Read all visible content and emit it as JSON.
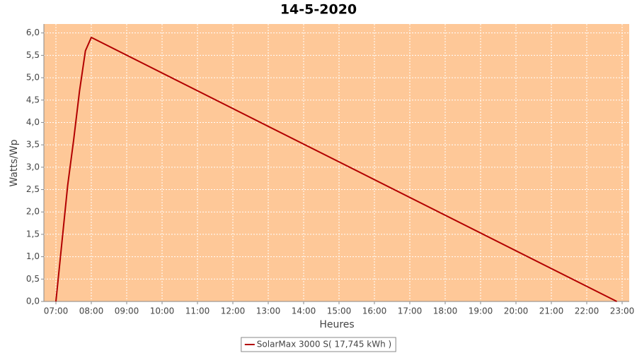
{
  "chart_data": {
    "type": "line",
    "title": "14-5-2020",
    "x_label": "Heures",
    "y_label": "Watts/Wp",
    "x": [
      7.0,
      7.1667,
      7.3333,
      7.5,
      7.6667,
      7.8333,
      8.0,
      22.85
    ],
    "series": [
      {
        "name": "SolarMax 3000 S( 17,745 kWh )",
        "color": "#b20000",
        "values": [
          0,
          1.3,
          2.6,
          3.6,
          4.7,
          5.6,
          5.9,
          0
        ]
      }
    ],
    "xlim": [
      6.66,
      23.2
    ],
    "ylim": [
      0,
      6.2
    ],
    "xticks": [
      {
        "value": 7,
        "label": "07:00"
      },
      {
        "value": 8,
        "label": "08:00"
      },
      {
        "value": 9,
        "label": "09:00"
      },
      {
        "value": 10,
        "label": "10:00"
      },
      {
        "value": 11,
        "label": "11:00"
      },
      {
        "value": 12,
        "label": "12:00"
      },
      {
        "value": 13,
        "label": "13:00"
      },
      {
        "value": 14,
        "label": "14:00"
      },
      {
        "value": 15,
        "label": "15:00"
      },
      {
        "value": 16,
        "label": "16:00"
      },
      {
        "value": 17,
        "label": "17:00"
      },
      {
        "value": 18,
        "label": "18:00"
      },
      {
        "value": 19,
        "label": "19:00"
      },
      {
        "value": 20,
        "label": "20:00"
      },
      {
        "value": 21,
        "label": "21:00"
      },
      {
        "value": 22,
        "label": "22:00"
      },
      {
        "value": 23,
        "label": "23:00"
      }
    ],
    "yticks": [
      {
        "value": 0,
        "label": "0,0"
      },
      {
        "value": 0.5,
        "label": "0,5"
      },
      {
        "value": 1,
        "label": "1,0"
      },
      {
        "value": 1.5,
        "label": "1,5"
      },
      {
        "value": 2,
        "label": "2,0"
      },
      {
        "value": 2.5,
        "label": "2,5"
      },
      {
        "value": 3,
        "label": "3,0"
      },
      {
        "value": 3.5,
        "label": "3,5"
      },
      {
        "value": 4,
        "label": "4,0"
      },
      {
        "value": 4.5,
        "label": "4,5"
      },
      {
        "value": 5,
        "label": "5,0"
      },
      {
        "value": 5.5,
        "label": "5,5"
      },
      {
        "value": 6,
        "label": "6,0"
      }
    ],
    "grid": true,
    "plot_background": "#fec898"
  }
}
